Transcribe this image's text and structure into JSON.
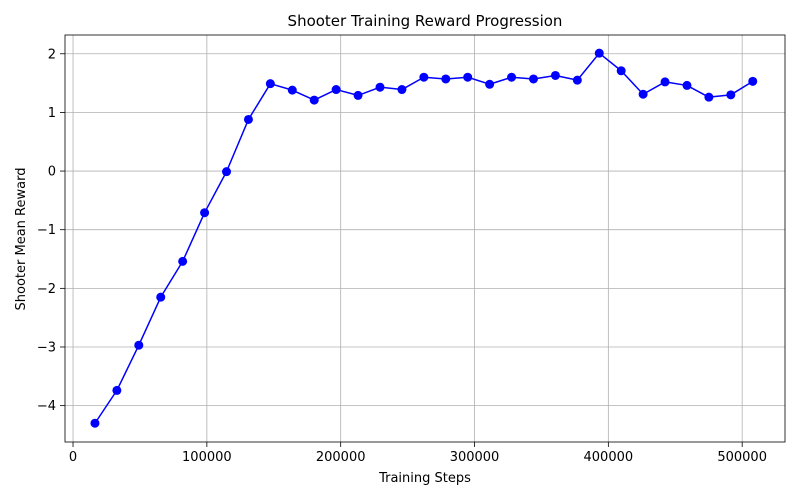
{
  "chart_data": {
    "type": "line",
    "title": "Shooter Training Reward Progression",
    "xlabel": "Training Steps",
    "ylabel": "Shooter Mean Reward",
    "xlim": [
      -6000,
      532000
    ],
    "ylim": [
      -4.62,
      2.32
    ],
    "xticks": [
      0,
      100000,
      200000,
      300000,
      400000,
      500000
    ],
    "yticks": [
      -4,
      -3,
      -2,
      -1,
      0,
      1,
      2
    ],
    "grid": true,
    "legend": "none",
    "series": [
      {
        "color": "#0000ff",
        "marker": "circle",
        "x": [
          16384,
          32768,
          49152,
          65536,
          81920,
          98304,
          114688,
          131072,
          147456,
          163840,
          180224,
          196608,
          212992,
          229376,
          245760,
          262144,
          278528,
          294912,
          311296,
          327680,
          344064,
          360448,
          376832,
          393216,
          409600,
          425984,
          442368,
          458752,
          475136,
          491520,
          507904
        ],
        "y": [
          -4.3,
          -3.74,
          -2.97,
          -2.15,
          -1.54,
          -0.71,
          -0.01,
          0.88,
          1.49,
          1.38,
          1.21,
          1.39,
          1.29,
          1.43,
          1.39,
          1.6,
          1.57,
          1.6,
          1.48,
          1.6,
          1.57,
          1.63,
          1.55,
          2.01,
          1.71,
          1.31,
          1.52,
          1.46,
          1.26,
          1.3,
          1.53
        ]
      }
    ]
  }
}
